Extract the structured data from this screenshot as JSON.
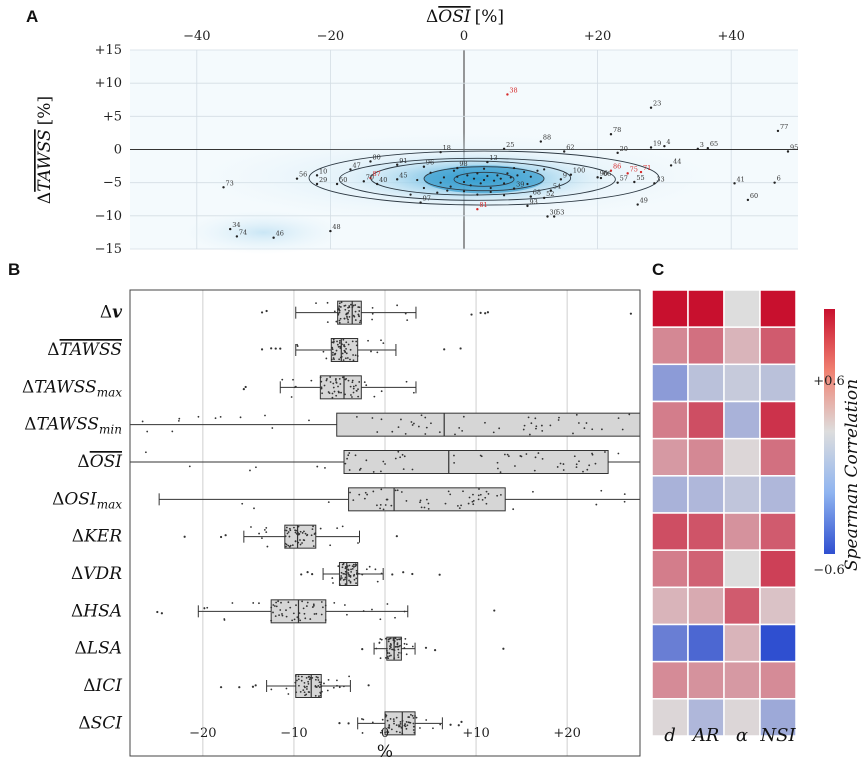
{
  "figure": {
    "panel_labels": [
      "A",
      "B",
      "C"
    ]
  },
  "chart_data": [
    {
      "type": "scatter",
      "panel": "A",
      "xlabel": "ΔOSI̅ [%]",
      "xlabel_parts": {
        "delta": "Δ",
        "var": "OSI",
        "unit": "[%]"
      },
      "ylabel": "ΔTAWSS̅ [%]",
      "ylabel_parts": {
        "delta": "Δ",
        "var": "TAWSS",
        "unit": "[%]"
      },
      "xlim": [
        -50,
        50
      ],
      "ylim": [
        -15,
        15
      ],
      "xticks": [
        -40,
        -20,
        0,
        20,
        40
      ],
      "xtick_labels": [
        "−40",
        "−20",
        "0",
        "+20",
        "+40"
      ],
      "yticks": [
        15,
        10,
        5,
        0,
        -5,
        -10,
        -15
      ],
      "ytick_labels": [
        "+15",
        "+10",
        "+5",
        "0",
        "−5",
        "−10",
        "−15"
      ],
      "points": [
        {
          "id": "38",
          "x": 6.5,
          "y": 8.3,
          "highlight": true
        },
        {
          "id": "23",
          "x": 28,
          "y": 6.3
        },
        {
          "id": "77",
          "x": 47,
          "y": 2.8
        },
        {
          "id": "78",
          "x": 22,
          "y": 2.3
        },
        {
          "id": "88",
          "x": 11.5,
          "y": 1.2
        },
        {
          "id": "4",
          "x": 30,
          "y": 0.5
        },
        {
          "id": "19",
          "x": 28,
          "y": 0.3
        },
        {
          "id": "3",
          "x": 35,
          "y": 0.1
        },
        {
          "id": "65",
          "x": 36.5,
          "y": 0.2
        },
        {
          "id": "95",
          "x": 48.5,
          "y": -0.3
        },
        {
          "id": "25",
          "x": 6,
          "y": 0.1
        },
        {
          "id": "62",
          "x": 15,
          "y": -0.3
        },
        {
          "id": "20",
          "x": 23,
          "y": -0.5
        },
        {
          "id": "18",
          "x": -3.5,
          "y": -0.4
        },
        {
          "id": "80",
          "x": -14,
          "y": -1.8
        },
        {
          "id": "91",
          "x": -10,
          "y": -2.3
        },
        {
          "id": "47",
          "x": -17,
          "y": -3.0
        },
        {
          "id": "96",
          "x": -6,
          "y": -2.6
        },
        {
          "id": "13",
          "x": 3.5,
          "y": -1.9
        },
        {
          "id": "98",
          "x": -1,
          "y": -2.8
        },
        {
          "id": "44",
          "x": 31,
          "y": -2.4
        },
        {
          "id": "56",
          "x": -25,
          "y": -4.4
        },
        {
          "id": "10",
          "x": -22,
          "y": -3.9
        },
        {
          "id": "87",
          "x": -14,
          "y": -4.3,
          "highlight": true
        },
        {
          "id": "45",
          "x": -10,
          "y": -4.5
        },
        {
          "id": "70",
          "x": -15,
          "y": -4.8
        },
        {
          "id": "40",
          "x": -13,
          "y": -5.2
        },
        {
          "id": "50",
          "x": -19,
          "y": -5.2
        },
        {
          "id": "29",
          "x": -22,
          "y": -5.2
        },
        {
          "id": "73",
          "x": -36,
          "y": -5.7
        },
        {
          "id": "86",
          "x": 22,
          "y": -3.2,
          "highlight": true
        },
        {
          "id": "75",
          "x": 24.5,
          "y": -3.6,
          "highlight": true
        },
        {
          "id": "71",
          "x": 26.5,
          "y": -3.4,
          "highlight": true
        },
        {
          "id": "100",
          "x": 16,
          "y": -3.8
        },
        {
          "id": "96b",
          "x": 20,
          "y": -4.2
        },
        {
          "id": "66",
          "x": 20.5,
          "y": -4.3
        },
        {
          "id": "57",
          "x": 23,
          "y": -5.0
        },
        {
          "id": "55",
          "x": 25.5,
          "y": -4.9
        },
        {
          "id": "33",
          "x": 28.5,
          "y": -5.1
        },
        {
          "id": "41",
          "x": 40.5,
          "y": -5.1
        },
        {
          "id": "6",
          "x": 46.5,
          "y": -5.0
        },
        {
          "id": "9",
          "x": 14.5,
          "y": -4.5
        },
        {
          "id": "39",
          "x": 7.5,
          "y": -5.9
        },
        {
          "id": "54",
          "x": 13,
          "y": -6.2
        },
        {
          "id": "68",
          "x": 10,
          "y": -7.1
        },
        {
          "id": "52",
          "x": 12,
          "y": -7.3
        },
        {
          "id": "93",
          "x": 9.5,
          "y": -8.5
        },
        {
          "id": "49",
          "x": 26,
          "y": -8.3
        },
        {
          "id": "60",
          "x": 42.5,
          "y": -7.6
        },
        {
          "id": "30",
          "x": 12.5,
          "y": -10.1
        },
        {
          "id": "53",
          "x": 13.5,
          "y": -10.1
        },
        {
          "id": "81",
          "x": 2,
          "y": -9.0,
          "highlight": true
        },
        {
          "id": "97",
          "x": -6.5,
          "y": -8.0
        },
        {
          "id": "48",
          "x": -20,
          "y": -12.3
        },
        {
          "id": "34",
          "x": -35,
          "y": -12.0
        },
        {
          "id": "74",
          "x": -34,
          "y": -13.1
        },
        {
          "id": "46",
          "x": -28.5,
          "y": -13.3
        }
      ],
      "cluster_points": [
        [
          -5,
          -3.5
        ],
        [
          -3,
          -4.2
        ],
        [
          -2,
          -5.6
        ],
        [
          -1,
          -4.1
        ],
        [
          0,
          -4.9
        ],
        [
          0.5,
          -3.9
        ],
        [
          1,
          -5.4
        ],
        [
          1.5,
          -4.4
        ],
        [
          2,
          -3.6
        ],
        [
          2.5,
          -5.1
        ],
        [
          3,
          -4.6
        ],
        [
          3.5,
          -4.0
        ],
        [
          4,
          -5.8
        ],
        [
          4.5,
          -4.7
        ],
        [
          5,
          -3.9
        ],
        [
          5.5,
          -4.4
        ],
        [
          6,
          -5.1
        ],
        [
          6.5,
          -3.6
        ],
        [
          7,
          -4.2
        ],
        [
          8,
          -3.9
        ],
        [
          9,
          -3.4
        ],
        [
          10,
          -4.1
        ],
        [
          11,
          -3.2
        ],
        [
          -6,
          -5.8
        ],
        [
          -4,
          -6.5
        ],
        [
          -2.5,
          -6.2
        ],
        [
          0,
          -6.3
        ],
        [
          2,
          -6.8
        ],
        [
          4,
          -6.4
        ],
        [
          6,
          -6.9
        ],
        [
          -8,
          -6.8
        ],
        [
          -7,
          -4.6
        ],
        [
          3,
          -2.9
        ],
        [
          7.5,
          -2.8
        ],
        [
          9.5,
          -5.2
        ],
        [
          -1.5,
          -3.2
        ],
        [
          12,
          -3.0
        ],
        [
          -3.5,
          -5.0
        ]
      ]
    },
    {
      "type": "box",
      "panel": "B",
      "xlabel": "%",
      "xlim": [
        -28,
        28
      ],
      "xticks": [
        -20,
        -10,
        0,
        10,
        20
      ],
      "xtick_labels": [
        "−20",
        "−10",
        "0",
        "+10",
        "+20"
      ],
      "categories": [
        {
          "delta": "Δ",
          "name": "v",
          "sub": "",
          "bar": false,
          "bold": true,
          "whislo": -9.8,
          "q1": -5.2,
          "med": -3.6,
          "q3": -2.6,
          "whishi": 3.4,
          "outliers": [
            -13.5,
            -13,
            9.5,
            10.5,
            11,
            11.3,
            27
          ]
        },
        {
          "delta": "Δ",
          "name": "TAWSS",
          "sub": "",
          "bar": true,
          "whislo": -9.8,
          "q1": -5.9,
          "med": -4.8,
          "q3": -3.0,
          "whishi": 1.2,
          "outliers": [
            -13.5,
            -12.5,
            -12,
            -11.5,
            6.5,
            8.3
          ]
        },
        {
          "delta": "Δ",
          "name": "TAWSS",
          "sub": "max",
          "bar": false,
          "whislo": -11.5,
          "q1": -7.1,
          "med": -4.5,
          "q3": -2.6,
          "whishi": 3.4,
          "outliers": [
            -15.5,
            -15.3
          ]
        },
        {
          "delta": "Δ",
          "name": "TAWSS",
          "sub": "min",
          "bar": false,
          "whislo": -28,
          "q1": -5.3,
          "med": 6.5,
          "q3": 28,
          "whishi": 28,
          "outliers": []
        },
        {
          "delta": "Δ",
          "name": "OSI",
          "sub": "",
          "bar": true,
          "whislo": -28,
          "q1": -4.5,
          "med": 7.0,
          "q3": 24.5,
          "whishi": 28,
          "outliers": []
        },
        {
          "delta": "Δ",
          "name": "OSI",
          "sub": "max",
          "bar": false,
          "whislo": -24.8,
          "q1": -4.0,
          "med": 1.0,
          "q3": 13.2,
          "whishi": 28,
          "outliers": []
        },
        {
          "delta": "Δ",
          "name": "KER",
          "sub": "",
          "bar": false,
          "whislo": -15.5,
          "q1": -11.0,
          "med": -9.6,
          "q3": -7.6,
          "whishi": -2.8,
          "outliers": [
            -22,
            -18,
            -17.5,
            1.3
          ]
        },
        {
          "delta": "Δ",
          "name": "VDR",
          "sub": "",
          "bar": false,
          "whislo": -6.8,
          "q1": -5.0,
          "med": -4.2,
          "q3": -3.0,
          "whishi": -0.2,
          "outliers": [
            -9.2,
            -8.5,
            -8,
            0.8,
            2.0,
            3.0,
            6.0
          ]
        },
        {
          "delta": "Δ",
          "name": "HSA",
          "sub": "",
          "bar": false,
          "whislo": -20.5,
          "q1": -12.5,
          "med": -9.5,
          "q3": -6.5,
          "whishi": 2.5,
          "outliers": [
            -25,
            -24.5,
            12
          ]
        },
        {
          "delta": "Δ",
          "name": "LSA",
          "sub": "",
          "bar": false,
          "whislo": -1.2,
          "q1": 0.2,
          "med": 1.0,
          "q3": 1.8,
          "whishi": 3.3,
          "outliers": [
            -2.5,
            4.5,
            5.5,
            13
          ]
        },
        {
          "delta": "Δ",
          "name": "ICI",
          "sub": "",
          "bar": false,
          "whislo": -13,
          "q1": -9.8,
          "med": -8.1,
          "q3": -7.0,
          "whishi": -3.8,
          "outliers": [
            -18,
            -16,
            -14.5,
            -14.2,
            -1.8
          ]
        },
        {
          "delta": "Δ",
          "name": "SCI",
          "sub": "",
          "bar": false,
          "whislo": -3.0,
          "q1": 0.0,
          "med": 1.9,
          "q3": 3.3,
          "whishi": 6.3,
          "outliers": [
            -5,
            -4,
            7.2,
            8.1,
            8.4
          ]
        }
      ]
    },
    {
      "type": "heatmap",
      "panel": "C",
      "columns": [
        "d",
        "AR",
        "α",
        "NSI"
      ],
      "colorbar": {
        "label": "Spearman Correlation",
        "min": -0.6,
        "max": 0.6,
        "max_label": "+0.6",
        "min_label": "−0.6"
      },
      "values": [
        [
          0.6,
          0.6,
          0.0,
          0.6
        ],
        [
          0.25,
          0.32,
          0.12,
          0.38
        ],
        [
          -0.28,
          -0.12,
          -0.08,
          -0.12
        ],
        [
          0.28,
          0.42,
          -0.18,
          0.5
        ],
        [
          0.2,
          0.25,
          0.02,
          0.32
        ],
        [
          -0.18,
          -0.16,
          -0.1,
          -0.16
        ],
        [
          0.42,
          0.4,
          0.22,
          0.38
        ],
        [
          0.28,
          0.36,
          0.0,
          0.46
        ],
        [
          0.12,
          0.15,
          0.38,
          0.08
        ],
        [
          -0.4,
          -0.5,
          0.12,
          -0.6
        ],
        [
          0.24,
          0.22,
          0.2,
          0.24
        ],
        [
          0.02,
          -0.16,
          0.02,
          -0.22
        ]
      ]
    }
  ]
}
